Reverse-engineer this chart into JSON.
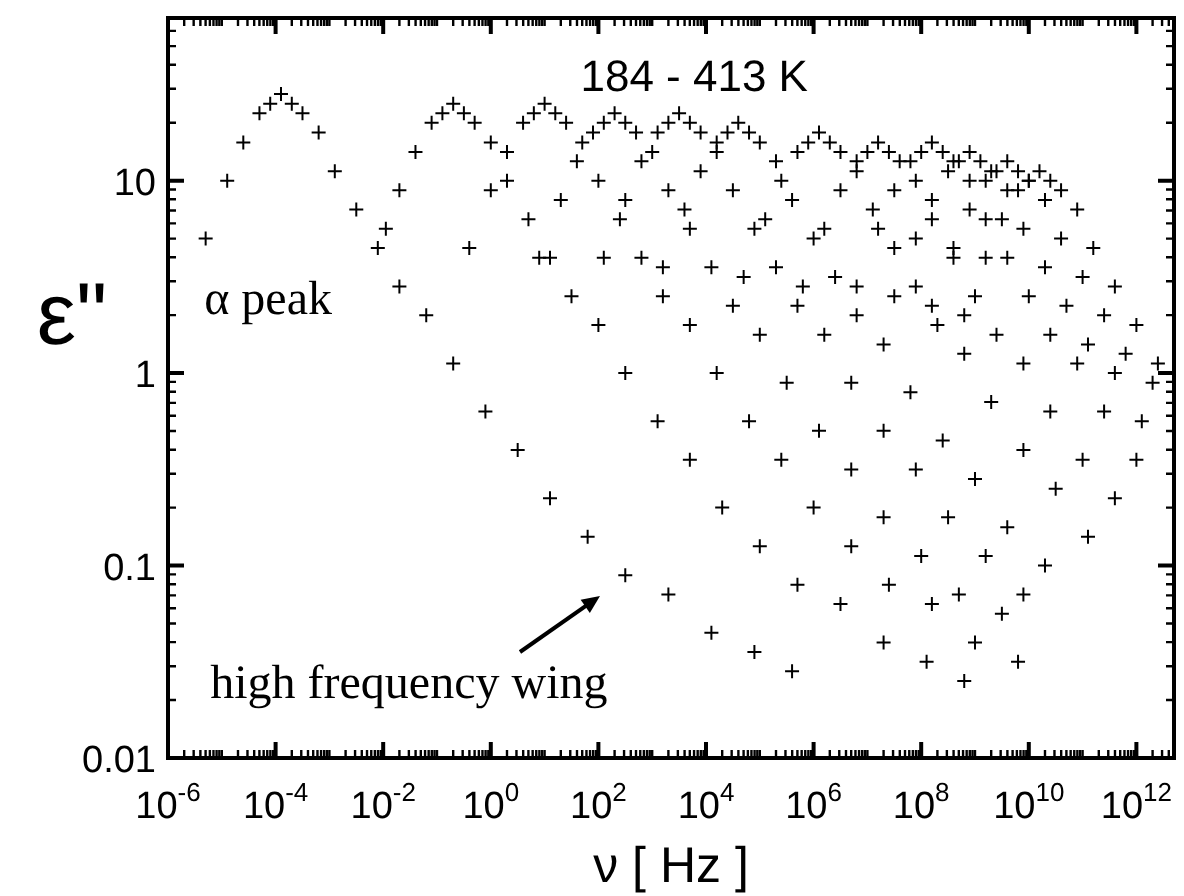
{
  "chart_data": {
    "type": "scatter",
    "xlabel": "ν [ Hz ]",
    "ylabel": "ε\"",
    "log": "xy",
    "marker": "cross",
    "grid": false,
    "legend": false,
    "xlim": [
      1e-06,
      5000000000000.0
    ],
    "ylim": [
      0.01,
      70
    ],
    "xticks": [
      {
        "value": 1e-06,
        "label": "10$^{-6}$"
      },
      {
        "value": 0.0001,
        "label": "10$^{-4}$"
      },
      {
        "value": 0.01,
        "label": "10$^{-2}$"
      },
      {
        "value": 1,
        "label": "10$^{0}$"
      },
      {
        "value": 100,
        "label": "10$^{2}$"
      },
      {
        "value": 10000.0,
        "label": "10$^{4}$"
      },
      {
        "value": 1000000.0,
        "label": "10$^{6}$"
      },
      {
        "value": 100000000.0,
        "label": "10$^{8}$"
      },
      {
        "value": 10000000000.0,
        "label": "10$^{10}$"
      },
      {
        "value": 1000000000000.0,
        "label": "10$^{12}$"
      }
    ],
    "yticks": [
      0.01,
      0.1,
      1,
      10
    ],
    "annotations": [
      "184 - 413 K",
      "α peak",
      "high frequency wing"
    ],
    "series": [
      {
        "color": "#000000",
        "x": [
          5.01e-06,
          1.26e-05,
          2.51e-05,
          5.01e-05,
          7.94e-05,
          0.000126,
          0.0002,
          0.000316,
          0.000631,
          0.00126,
          0.00316,
          0.00794,
          0.02,
          0.0631,
          0.2,
          0.794,
          3.16,
          12.6,
          63.1,
          316,
          2000,
          12600,
          79400,
          398000
        ],
        "values": [
          5.01,
          10,
          15.8,
          22.4,
          25.1,
          28.2,
          25.1,
          22.4,
          17.8,
          11.2,
          7.08,
          4.47,
          2.82,
          2,
          1.12,
          0.631,
          0.398,
          0.224,
          0.141,
          0.0891,
          0.0708,
          0.0447,
          0.0355,
          0.0282
        ]
      },
      {
        "color": "#000000",
        "x": [
          0.0112,
          0.02,
          0.0398,
          0.0794,
          0.126,
          0.2,
          0.316,
          0.501,
          1,
          2,
          5.01,
          12.6,
          31.6,
          100,
          316,
          1260,
          5010,
          20000,
          100000.0,
          501000.0,
          3160000.0,
          20000000.0,
          126000000.0,
          631000000.0
        ],
        "values": [
          5.62,
          8.91,
          14.1,
          20,
          22.4,
          25.1,
          22.4,
          20,
          15.8,
          10,
          6.31,
          3.98,
          2.51,
          1.78,
          1,
          0.562,
          0.355,
          0.2,
          0.126,
          0.0794,
          0.0631,
          0.0398,
          0.0316,
          0.0251
        ]
      },
      {
        "color": "#000000",
        "x": [
          0.398,
          1,
          2,
          3.98,
          6.31,
          10,
          15.8,
          25.1,
          50.1,
          100,
          251,
          631,
          1580,
          5010,
          15800,
          63100,
          251000.0,
          1000000.0,
          5010000.0,
          25100000.0,
          158000000.0,
          1000000000.0,
          6310000000.0
        ],
        "values": [
          4.47,
          8.91,
          14.1,
          20,
          22.4,
          25.1,
          22.4,
          20,
          15.8,
          10,
          6.31,
          3.98,
          2.51,
          1.78,
          1,
          0.562,
          0.355,
          0.2,
          0.126,
          0.0794,
          0.0631,
          0.0398,
          0.0316
        ]
      },
      {
        "color": "#000000",
        "x": [
          7.94,
          20,
          39.8,
          79.4,
          126,
          200,
          316,
          501,
          1000,
          2000,
          5010,
          12600,
          31600,
          100000.0,
          316000.0,
          1260000.0,
          5010000.0,
          20000000.0,
          100000000.0,
          501000000.0,
          3160000000.0
        ],
        "values": [
          3.98,
          7.94,
          12.6,
          17.8,
          20,
          22.4,
          20,
          17.8,
          14.1,
          8.91,
          5.62,
          3.55,
          2.24,
          1.58,
          0.891,
          0.501,
          0.316,
          0.178,
          0.112,
          0.0708,
          0.0562
        ]
      },
      {
        "color": "#000000",
        "x": [
          126,
          316,
          631,
          1260,
          2000,
          3160,
          5010,
          7940,
          15800,
          31600,
          79400,
          200000.0,
          501000.0,
          1580000.0,
          5010000.0,
          20000000.0,
          79400000.0,
          316000000.0,
          1580000000.0,
          7940000000.0
        ],
        "values": [
          3.98,
          7.94,
          12.6,
          17.8,
          20,
          22.4,
          20,
          17.8,
          14.1,
          8.91,
          5.62,
          3.55,
          2.24,
          1.58,
          0.891,
          0.501,
          0.316,
          0.178,
          0.112,
          0.0708
        ]
      },
      {
        "color": "#000000",
        "x": [
          1580,
          3980,
          7940,
          15800,
          25100,
          39800,
          63100,
          100000.0,
          200000.0,
          398000.0,
          1000000.0,
          2510000.0,
          6310000.0,
          20000000.0,
          63100000.0,
          251000000.0,
          1000000000.0,
          3980000000.0,
          20000000000.0
        ],
        "values": [
          3.55,
          7.08,
          11.2,
          15.8,
          17.8,
          20,
          17.8,
          15.8,
          12.6,
          7.94,
          5.01,
          3.16,
          2,
          1.41,
          0.794,
          0.447,
          0.282,
          0.158,
          0.1
        ]
      },
      {
        "color": "#000000",
        "x": [
          50100,
          126000.0,
          251000.0,
          501000.0,
          794000.0,
          1260000.0,
          2000000.0,
          3160000.0,
          6310000.0,
          12600000.0,
          31600000.0,
          79400000.0,
          200000000.0,
          631000000.0,
          2000000000.0,
          7940000000.0,
          31600000000.0,
          126000000000.0
        ],
        "values": [
          3.16,
          6.31,
          10,
          14.1,
          15.8,
          17.8,
          15.8,
          14.1,
          11.2,
          7.08,
          4.47,
          2.82,
          1.78,
          1.26,
          0.708,
          0.398,
          0.251,
          0.141
        ]
      },
      {
        "color": "#000000",
        "x": [
          631000.0,
          1580000.0,
          3160000.0,
          6310000.0,
          10000000.0,
          15800000.0,
          25100000.0,
          39800000.0,
          79400000.0,
          158000000.0,
          398000000.0,
          1000000000.0,
          2510000000.0,
          7940000000.0,
          25100000000.0,
          100000000000.0,
          398000000000.0
        ],
        "values": [
          2.82,
          5.62,
          8.91,
          12.6,
          14.1,
          15.8,
          14.1,
          12.6,
          10,
          6.31,
          3.98,
          2.51,
          1.58,
          1.12,
          0.631,
          0.355,
          0.224
        ]
      },
      {
        "color": "#000000",
        "x": [
          6310000.0,
          15800000.0,
          31600000.0,
          63100000.0,
          100000000.0,
          158000000.0,
          251000000.0,
          398000000.0,
          794000000.0,
          1580000000.0,
          3980000000.0,
          10000000000.0,
          25100000000.0,
          79400000000.0,
          251000000000.0,
          1000000000000.0
        ],
        "values": [
          2.82,
          5.62,
          8.91,
          12.6,
          14.1,
          15.8,
          14.1,
          12.6,
          10,
          6.31,
          3.98,
          2.51,
          1.58,
          1.12,
          0.631,
          0.355
        ]
      },
      {
        "color": "#000000",
        "x": [
          31600000.0,
          79400000.0,
          158000000.0,
          316000000.0,
          501000000.0,
          794000000.0,
          1260000000.0,
          2000000000.0,
          3980000000.0,
          7940000000.0,
          20000000000.0,
          50100000000.0,
          126000000000.0,
          398000000000.0,
          1260000000000.0
        ],
        "values": [
          2.51,
          5.01,
          7.94,
          11.2,
          12.6,
          14.1,
          12.6,
          11.2,
          8.91,
          5.62,
          3.55,
          2.24,
          1.41,
          1,
          0.562
        ]
      },
      {
        "color": "#000000",
        "x": [
          158000000.0,
          398000000.0,
          794000000.0,
          1580000000.0,
          2510000000.0,
          3980000000.0,
          6310000000.0,
          10000000000.0,
          20000000000.0,
          39800000000.0,
          100000000000.0,
          251000000000.0,
          631000000000.0,
          2000000000000.0
        ],
        "values": [
          2.24,
          4.47,
          7.08,
          10,
          11.2,
          12.6,
          11.2,
          10,
          7.94,
          5.01,
          3.16,
          2,
          1.26,
          0.891
        ]
      },
      {
        "color": "#000000",
        "x": [
          631000000.0,
          1580000000.0,
          3160000000.0,
          6310000000.0,
          10000000000.0,
          15800000000.0,
          25100000000.0,
          39800000000.0,
          79400000000.0,
          158000000000.0,
          398000000000.0,
          1000000000000.0,
          2510000000000.0
        ],
        "values": [
          2,
          3.98,
          6.31,
          8.91,
          10,
          11.2,
          10,
          8.91,
          7.08,
          4.47,
          2.82,
          1.78,
          1.12
        ]
      }
    ]
  }
}
